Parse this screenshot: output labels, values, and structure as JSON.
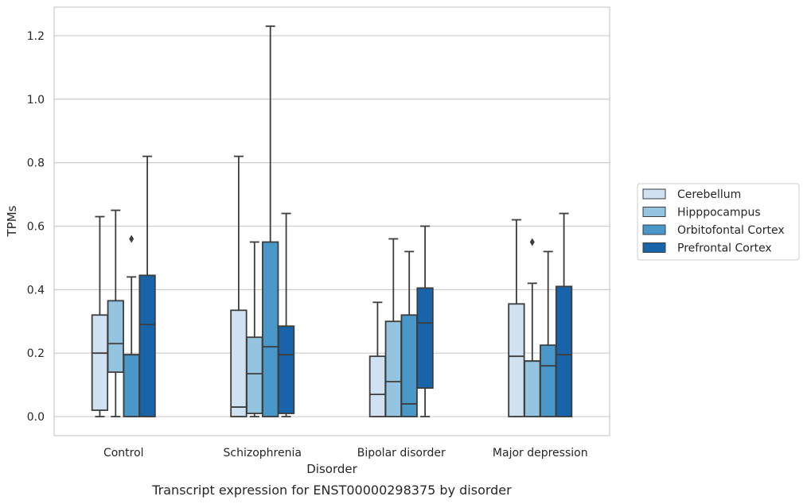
{
  "caption": "Transcript expression for ENST00000298375 by disorder",
  "chart_data": {
    "type": "box",
    "xlabel": "Disorder",
    "ylabel": "TPMs",
    "ylim": [
      -0.06,
      1.29
    ],
    "yticks": [
      0.0,
      0.2,
      0.4,
      0.6,
      0.8,
      1.0,
      1.2
    ],
    "ytick_labels": [
      "0.0",
      "0.2",
      "0.4",
      "0.6",
      "0.8",
      "1.0",
      "1.2"
    ],
    "grid": "horizontal",
    "legend_position": "right",
    "categories": [
      "Control",
      "Schizophrenia",
      "Bipolar disorder",
      "Major depression"
    ],
    "series": [
      {
        "name": "Cerebellum",
        "color": "#d0e1f2",
        "boxes": [
          {
            "whisker_low": 0.0,
            "q1": 0.02,
            "median": 0.2,
            "q3": 0.32,
            "whisker_high": 0.63,
            "outliers": []
          },
          {
            "whisker_low": 0.0,
            "q1": 0.0,
            "median": 0.03,
            "q3": 0.335,
            "whisker_high": 0.82,
            "outliers": []
          },
          {
            "whisker_low": 0.0,
            "q1": 0.0,
            "median": 0.07,
            "q3": 0.19,
            "whisker_high": 0.36,
            "outliers": []
          },
          {
            "whisker_low": 0.0,
            "q1": 0.0,
            "median": 0.19,
            "q3": 0.355,
            "whisker_high": 0.62,
            "outliers": []
          }
        ]
      },
      {
        "name": "Hipppocampus",
        "color": "#94c4df",
        "boxes": [
          {
            "whisker_low": 0.0,
            "q1": 0.14,
            "median": 0.23,
            "q3": 0.365,
            "whisker_high": 0.65,
            "outliers": []
          },
          {
            "whisker_low": 0.0,
            "q1": 0.01,
            "median": 0.135,
            "q3": 0.25,
            "whisker_high": 0.55,
            "outliers": []
          },
          {
            "whisker_low": 0.0,
            "q1": 0.0,
            "median": 0.11,
            "q3": 0.3,
            "whisker_high": 0.56,
            "outliers": []
          },
          {
            "whisker_low": 0.0,
            "q1": 0.0,
            "median": 0.175,
            "q3": 0.175,
            "whisker_high": 0.42,
            "outliers": [
              0.55
            ]
          }
        ]
      },
      {
        "name": "Orbitofontal Cortex",
        "color": "#4a98c9",
        "boxes": [
          {
            "whisker_low": 0.0,
            "q1": 0.0,
            "median": 0.195,
            "q3": 0.195,
            "whisker_high": 0.44,
            "outliers": [
              0.56
            ]
          },
          {
            "whisker_low": 0.0,
            "q1": 0.0,
            "median": 0.22,
            "q3": 0.55,
            "whisker_high": 1.23,
            "outliers": []
          },
          {
            "whisker_low": 0.0,
            "q1": 0.0,
            "median": 0.04,
            "q3": 0.32,
            "whisker_high": 0.52,
            "outliers": []
          },
          {
            "whisker_low": 0.0,
            "q1": 0.0,
            "median": 0.16,
            "q3": 0.225,
            "whisker_high": 0.52,
            "outliers": []
          }
        ]
      },
      {
        "name": "Prefrontal Cortex",
        "color": "#1764ab",
        "boxes": [
          {
            "whisker_low": 0.0,
            "q1": 0.0,
            "median": 0.29,
            "q3": 0.445,
            "whisker_high": 0.82,
            "outliers": []
          },
          {
            "whisker_low": 0.0,
            "q1": 0.01,
            "median": 0.195,
            "q3": 0.285,
            "whisker_high": 0.64,
            "outliers": []
          },
          {
            "whisker_low": 0.0,
            "q1": 0.09,
            "median": 0.295,
            "q3": 0.405,
            "whisker_high": 0.6,
            "outliers": []
          },
          {
            "whisker_low": 0.0,
            "q1": 0.0,
            "median": 0.195,
            "q3": 0.41,
            "whisker_high": 0.64,
            "outliers": []
          }
        ]
      }
    ]
  }
}
